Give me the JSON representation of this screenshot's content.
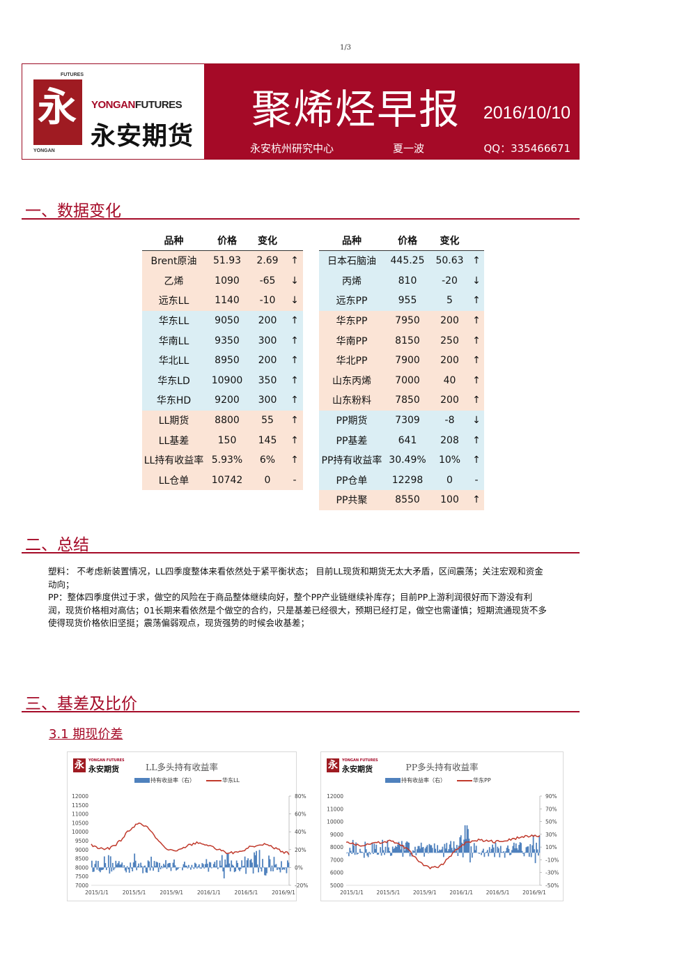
{
  "page_number": "1/3",
  "header": {
    "logo_top": "FUTURES",
    "logo_bottom": "YONGAN",
    "logo_glyph": "永",
    "logo_en_a": "YONGAN",
    "logo_en_b": "FUTURES",
    "logo_cn": "永安期货",
    "title": "聚烯烃早报",
    "date": "2016/10/10",
    "center": "永安杭州研究中心",
    "author": "夏一波",
    "qq": "QQ：335466671"
  },
  "sections": {
    "s1": "一、数据变化",
    "s2": "二、总结",
    "s3": "三、基差及比价",
    "s3_1": "3.1 期现价差"
  },
  "table_headers": [
    "品种",
    "价格",
    "变化"
  ],
  "table_left": [
    {
      "name": "Brent原油",
      "price": "51.93",
      "change": "2.69",
      "arrow": "↑",
      "color": "pk"
    },
    {
      "name": "乙烯",
      "price": "1090",
      "change": "-65",
      "arrow": "↓",
      "color": "pk"
    },
    {
      "name": "远东LL",
      "price": "1140",
      "change": "-10",
      "arrow": "↓",
      "color": "pk"
    },
    {
      "name": "华东LL",
      "price": "9050",
      "change": "200",
      "arrow": "↑",
      "color": "bl"
    },
    {
      "name": "华南LL",
      "price": "9350",
      "change": "300",
      "arrow": "↑",
      "color": "bl"
    },
    {
      "name": "华北LL",
      "price": "8950",
      "change": "200",
      "arrow": "↑",
      "color": "bl"
    },
    {
      "name": "华东LD",
      "price": "10900",
      "change": "350",
      "arrow": "↑",
      "color": "bl"
    },
    {
      "name": "华东HD",
      "price": "9200",
      "change": "300",
      "arrow": "↑",
      "color": "bl"
    },
    {
      "name": "LL期货",
      "price": "8800",
      "change": "55",
      "arrow": "↑",
      "color": "pk"
    },
    {
      "name": "LL基差",
      "price": "150",
      "change": "145",
      "arrow": "↑",
      "color": "pk"
    },
    {
      "name": "LL持有收益率",
      "price": "5.93%",
      "change": "6%",
      "arrow": "↑",
      "color": "pk"
    },
    {
      "name": "LL仓单",
      "price": "10742",
      "change": "0",
      "arrow": "-",
      "color": "pk"
    }
  ],
  "table_right": [
    {
      "name": "日本石脑油",
      "price": "445.25",
      "change": "50.63",
      "arrow": "↑",
      "color": "bl"
    },
    {
      "name": "丙烯",
      "price": "810",
      "change": "-20",
      "arrow": "↓",
      "color": "bl"
    },
    {
      "name": "远东PP",
      "price": "955",
      "change": "5",
      "arrow": "↑",
      "color": "bl"
    },
    {
      "name": "华东PP",
      "price": "7950",
      "change": "200",
      "arrow": "↑",
      "color": "pk"
    },
    {
      "name": "华南PP",
      "price": "8150",
      "change": "250",
      "arrow": "↑",
      "color": "pk"
    },
    {
      "name": "华北PP",
      "price": "7900",
      "change": "200",
      "arrow": "↑",
      "color": "pk"
    },
    {
      "name": "山东丙烯",
      "price": "7000",
      "change": "40",
      "arrow": "↑",
      "color": "pk"
    },
    {
      "name": "山东粉料",
      "price": "7850",
      "change": "200",
      "arrow": "↑",
      "color": "pk"
    },
    {
      "name": "PP期货",
      "price": "7309",
      "change": "-8",
      "arrow": "↓",
      "color": "bl"
    },
    {
      "name": "PP基差",
      "price": "641",
      "change": "208",
      "arrow": "↑",
      "color": "bl"
    },
    {
      "name": "PP持有收益率",
      "price": "30.49%",
      "change": "10%",
      "arrow": "↑",
      "color": "bl"
    },
    {
      "name": "PP仓单",
      "price": "12298",
      "change": "0",
      "arrow": "-",
      "color": "bl"
    },
    {
      "name": "PP共聚",
      "price": "8550",
      "change": "100",
      "arrow": "↑",
      "color": "pk"
    }
  ],
  "summary": [
    "塑料： 不考虑新装置情况，LL四季度整体来看依然处于紧平衡状态；     目前LL现货和期货无太大矛盾，区间震荡；关注宏观和资金动向；",
    "PP：整体四季度供过于求，做空的风险在于商品整体继续向好，整个PP产业链继续补库存；目前PP上游利润很好而下游没有利润，现货价格相对高估；01长期来看依然是个做空的合约，只是基差已经很大，预期已经打足，做空也需谨慎；短期流通现货不多使得现货价格依旧坚挺；震荡偏弱观点，现货强势的时候会收基差；"
  ],
  "charts": {
    "logo_small": "YONGAN FUTURES 永安期货",
    "logo_small_cn": "永安期货",
    "logo_small_en": "YONGAN FUTURES",
    "ll": {
      "title": "LL多头持有收益率",
      "legend_bar": "持有收益率（右）",
      "legend_line": "华东LL",
      "left_ticks": [
        "12000",
        "11500",
        "11000",
        "10500",
        "10000",
        "9500",
        "9000",
        "8500",
        "8000",
        "7500",
        "7000"
      ],
      "right_ticks": [
        "80%",
        "60%",
        "40%",
        "20%",
        "0%",
        "-20%"
      ],
      "x_ticks": [
        "2015/1/1",
        "2015/5/1",
        "2015/9/1",
        "2016/1/1",
        "2016/5/1",
        "2016/9/1"
      ]
    },
    "pp": {
      "title": "PP多头持有收益率",
      "legend_bar": "持有收益率（右）",
      "legend_line": "华东PP",
      "left_ticks": [
        "12000",
        "11000",
        "10000",
        "9000",
        "8000",
        "7000",
        "6000",
        "5000"
      ],
      "right_ticks": [
        "90%",
        "70%",
        "50%",
        "30%",
        "10%",
        "-10%",
        "-30%",
        "-50%"
      ],
      "x_ticks": [
        "2015/1/1",
        "2015/5/1",
        "2015/9/1",
        "2016/1/1",
        "2016/5/1",
        "2016/9/1"
      ]
    }
  },
  "colors": {
    "brand": "#a50a27",
    "bar": "#4f81bd",
    "line": "#c0392b",
    "pink": "#fbe4d6",
    "blue": "#dbeef4"
  }
}
